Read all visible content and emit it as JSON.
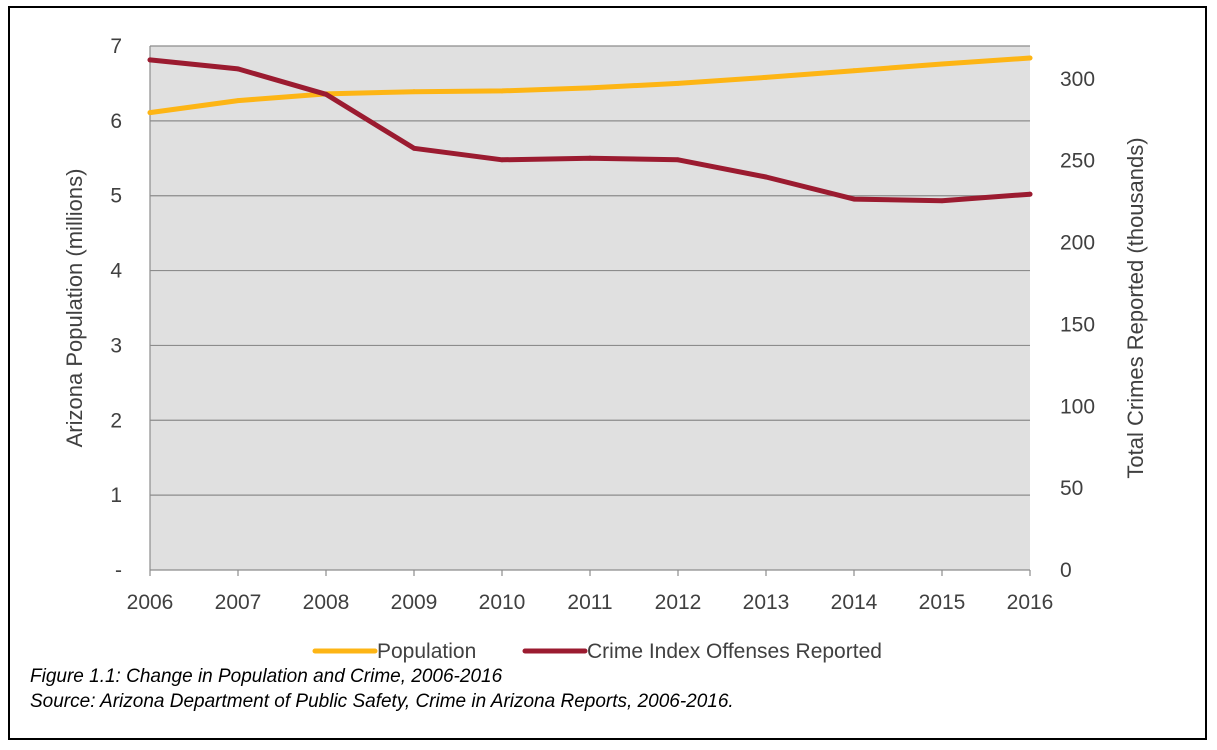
{
  "chart_data": {
    "type": "line",
    "categories": [
      "2006",
      "2007",
      "2008",
      "2009",
      "2010",
      "2011",
      "2012",
      "2013",
      "2014",
      "2015",
      "2016"
    ],
    "series": [
      {
        "name": "Population",
        "axis": "left",
        "color": "#FDB515",
        "values": [
          6.11,
          6.27,
          6.36,
          6.39,
          6.4,
          6.44,
          6.5,
          6.58,
          6.67,
          6.76,
          6.84
        ]
      },
      {
        "name": "Crime Index Offenses Reported",
        "axis": "right",
        "color": "#9B1B30",
        "values": [
          311.5,
          306,
          290.5,
          257.5,
          250.5,
          251.5,
          250.5,
          240,
          226.5,
          225.5,
          229.5
        ]
      }
    ],
    "ylabel": "Arizona Population (millions)",
    "y2label": "Total Crimes Reported (thousands)",
    "ylim": [
      0,
      7
    ],
    "y2lim": [
      0,
      320
    ],
    "y_ticks": [
      "-",
      "1",
      "2",
      "3",
      "4",
      "5",
      "6",
      "7"
    ],
    "y2_ticks": [
      "0",
      "50",
      "100",
      "150",
      "200",
      "250",
      "300"
    ],
    "grid": true,
    "plot_background": "#E0E0E0",
    "gridline_color": "#8C8C8C",
    "legend_position": "bottom"
  },
  "caption": {
    "line1": "Figure 1.1: Change in Population and Crime, 2006-2016",
    "line2": "Source: Arizona Department of Public Safety, Crime in Arizona Reports, 2006-2016."
  }
}
